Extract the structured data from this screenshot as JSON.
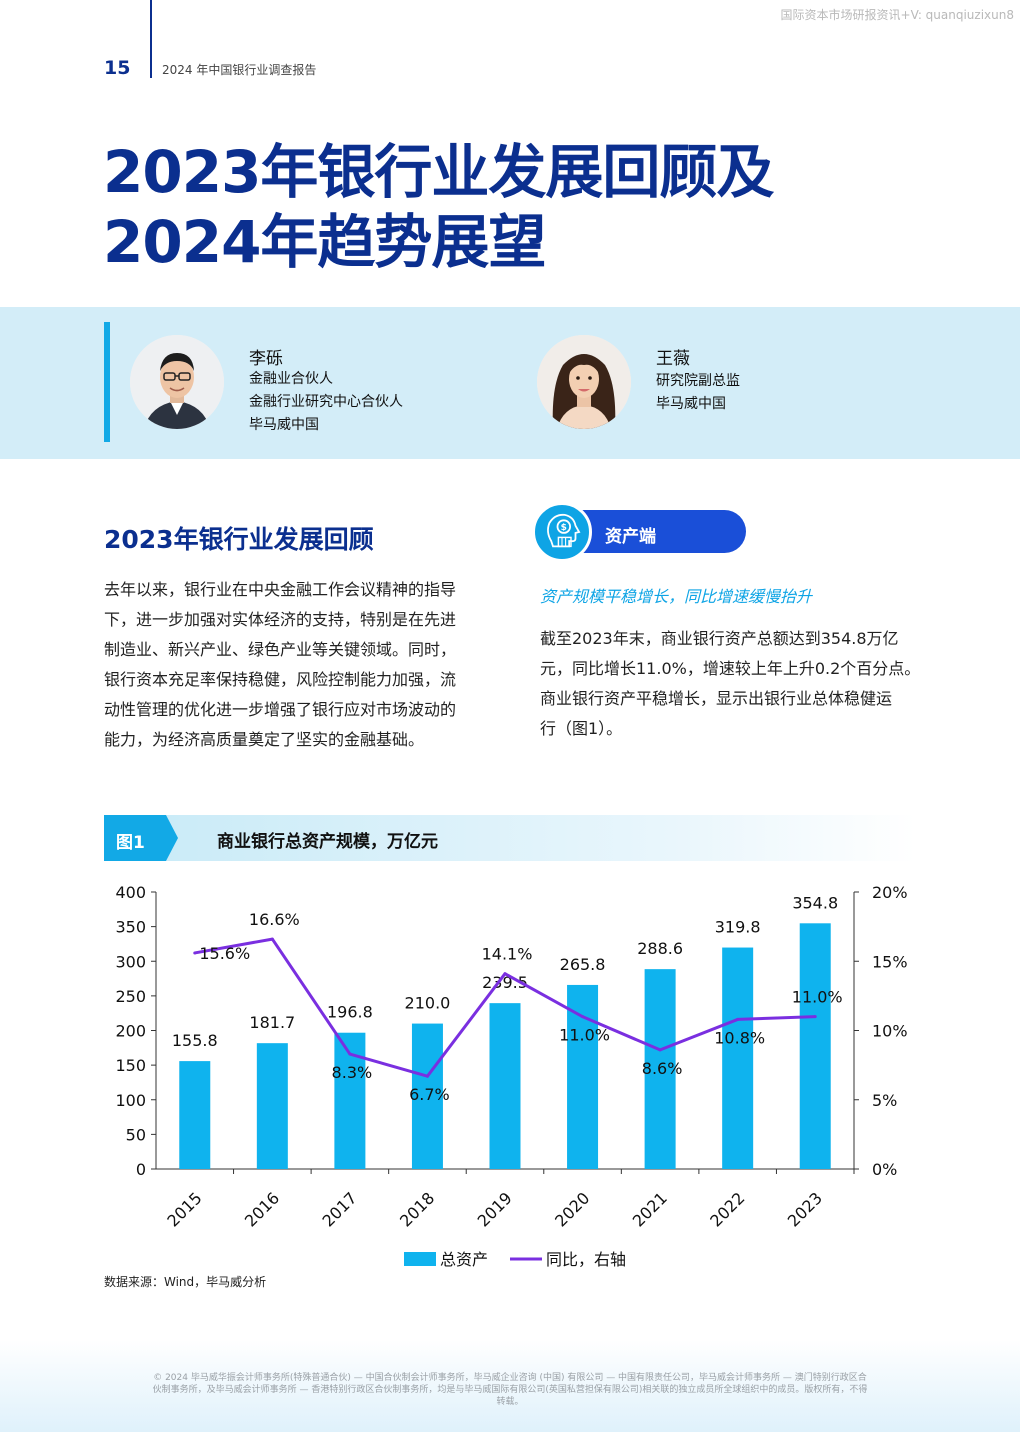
{
  "watermark": "国际资本市场研报资讯+V: quanqiuzixun8",
  "header": {
    "page_number": "15",
    "report_title": "2024 年中国银行业调查报告"
  },
  "title": {
    "line1": "2023年银行业发展回顾及",
    "line2": "2024年趋势展望"
  },
  "authors": [
    {
      "name": "李砾",
      "roles": [
        "金融业合伙人",
        "金融行业研究中心合伙人",
        "毕马威中国"
      ]
    },
    {
      "name": "王薇",
      "roles": [
        "研究院副总监",
        "毕马威中国"
      ]
    }
  ],
  "left_section": {
    "heading": "2023年银行业发展回顾",
    "lines": [
      "去年以来，银行业在中央金融工作会议精神的指导",
      "下，进一步加强对实体经济的支持，特别是在先进",
      "制造业、新兴产业、绿色产业等关键领域。同时，",
      "银行资本充足率保持稳健，风险控制能力加强，流",
      "动性管理的优化进一步增强了银行应对市场波动的",
      "能力，为经济高质量奠定了坚实的金融基础。"
    ]
  },
  "right_section": {
    "pill_label": "资产端",
    "subheading": "资产规模平稳增长，同比增速缓慢抬升",
    "lines": [
      "截至2023年末，商业银行资产总额达到354.8万亿",
      "元，同比增长11.0%，增速较上年上升0.2个百分点。",
      "商业银行资产平稳增长，显示出银行业总体稳健运",
      "行（图1）。"
    ]
  },
  "figure": {
    "tag": "图1",
    "title": "商业银行总资产规模，万亿元"
  },
  "chart_data": {
    "type": "bar",
    "categories": [
      "2015",
      "2016",
      "2017",
      "2018",
      "2019",
      "2020",
      "2021",
      "2022",
      "2023"
    ],
    "series": [
      {
        "name": "总资产",
        "type": "bar",
        "axis": "left",
        "color": "#0fb3ee",
        "values": [
          155.8,
          181.7,
          196.8,
          210.0,
          239.5,
          265.8,
          288.6,
          319.8,
          354.8
        ],
        "labels": [
          "155.8",
          "181.7",
          "196.8",
          "210.0",
          "239.5",
          "265.8",
          "288.6",
          "319.8",
          "354.8"
        ]
      },
      {
        "name": "同比，右轴",
        "type": "line",
        "axis": "right",
        "color": "#7a2fe0",
        "values": [
          15.6,
          16.6,
          8.3,
          6.7,
          14.1,
          11.0,
          8.6,
          10.8,
          11.0
        ],
        "labels": [
          "15.6%",
          "16.6%",
          "8.3%",
          "6.7%",
          "14.1%",
          "11.0%",
          "8.6%",
          "10.8%",
          "11.0%"
        ]
      }
    ],
    "left_axis": {
      "ylim": [
        0,
        400
      ],
      "ticks": [
        "0",
        "50",
        "100",
        "150",
        "200",
        "250",
        "300",
        "350",
        "400"
      ]
    },
    "right_axis": {
      "ylim": [
        0,
        20
      ],
      "ticks": [
        "0%",
        "5%",
        "10%",
        "15%",
        "20%"
      ]
    },
    "legend_position": "bottom-center",
    "grid": false
  },
  "source": "数据来源：Wind，毕马威分析",
  "footer": "© 2024 毕马威华振会计师事务所(特殊普通合伙) — 中国合伙制会计师事务所，毕马威企业咨询 (中国) 有限公司 — 中国有限责任公司，毕马威会计师事务所 — 澳门特别行政区合伙制事务所，及毕马威会计师事务所 — 香港特别行政区合伙制事务所，均是与毕马威国际有限公司(英国私营担保有限公司)相关联的独立成员所全球组织中的成员。版权所有，不得转载。",
  "colors": {
    "brand_blue": "#0b2f8f",
    "accent_cyan": "#12a9e6",
    "pill_blue": "#1a4fd8",
    "bar": "#0fb3ee",
    "line": "#7a2fe0"
  }
}
